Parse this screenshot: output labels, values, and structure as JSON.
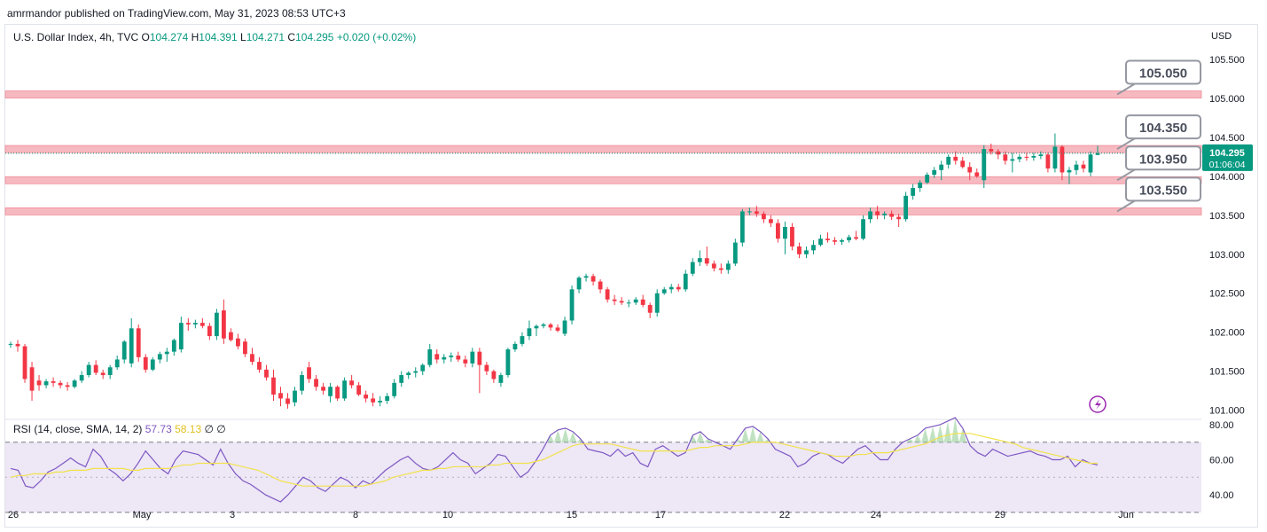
{
  "publisher": "amrmandor published on TradingView.com, May 31, 2023 08:53 UTC+3",
  "legend": {
    "symbol": "U.S. Dollar Index, 4h, TVC",
    "open_label": "O",
    "open": "104.274",
    "high_label": "H",
    "high": "104.391",
    "low_label": "L",
    "low": "104.271",
    "close_label": "C",
    "close": "104.295",
    "change": "+0.020 (+0.02%)"
  },
  "rsi_legend": {
    "label": "RSI (14, close, SMA, 14, 2)",
    "rsi": "57.73",
    "sma": "58.13",
    "extra1": "∅",
    "extra2": "∅"
  },
  "currency": "USD",
  "price_tag": {
    "price": "104.295",
    "countdown": "01:06:04"
  },
  "colors": {
    "up": "#089981",
    "down": "#f23645",
    "zone": "#f7b9c0",
    "zone_edge": "#f08c98",
    "rsi": "#7e57c2",
    "sma": "#f2e24b",
    "rsi_band": "#ede7f6"
  },
  "icons": [
    "lightning-icon"
  ],
  "chart_data": {
    "type": "candlestick",
    "timeframe": "4h",
    "x_ticks": [
      "26",
      "May",
      "3",
      "8",
      "10",
      "15",
      "17",
      "22",
      "24",
      "29",
      "Jun"
    ],
    "y_ticks": [
      "101.000",
      "101.500",
      "102.000",
      "102.500",
      "103.000",
      "103.500",
      "104.000",
      "104.500",
      "105.000",
      "105.500"
    ],
    "ylim": [
      100.95,
      105.75
    ],
    "levels": [
      {
        "label": "105.050",
        "value": 105.05
      },
      {
        "label": "104.350",
        "value": 104.35
      },
      {
        "label": "103.950",
        "value": 103.95
      },
      {
        "label": "103.550",
        "value": 103.55
      }
    ],
    "candles": [
      [
        101.85,
        101.88,
        101.8,
        101.85
      ],
      [
        101.85,
        101.9,
        101.75,
        101.82
      ],
      [
        101.82,
        101.85,
        101.35,
        101.4
      ],
      [
        101.55,
        101.62,
        101.12,
        101.25
      ],
      [
        101.38,
        101.45,
        101.25,
        101.32
      ],
      [
        101.32,
        101.4,
        101.28,
        101.37
      ],
      [
        101.37,
        101.42,
        101.3,
        101.35
      ],
      [
        101.35,
        101.38,
        101.28,
        101.32
      ],
      [
        101.32,
        101.36,
        101.25,
        101.3
      ],
      [
        101.3,
        101.4,
        101.28,
        101.38
      ],
      [
        101.38,
        101.5,
        101.35,
        101.45
      ],
      [
        101.45,
        101.62,
        101.42,
        101.58
      ],
      [
        101.58,
        101.64,
        101.45,
        101.48
      ],
      [
        101.48,
        101.52,
        101.4,
        101.45
      ],
      [
        101.45,
        101.58,
        101.4,
        101.55
      ],
      [
        101.55,
        101.7,
        101.52,
        101.65
      ],
      [
        101.65,
        101.9,
        101.6,
        101.88
      ],
      [
        101.6,
        102.18,
        101.55,
        102.05
      ],
      [
        102.05,
        102.1,
        101.62,
        101.68
      ],
      [
        101.68,
        101.72,
        101.48,
        101.52
      ],
      [
        101.52,
        101.68,
        101.5,
        101.65
      ],
      [
        101.65,
        101.75,
        101.6,
        101.72
      ],
      [
        101.72,
        101.8,
        101.62,
        101.75
      ],
      [
        101.75,
        101.92,
        101.7,
        101.9
      ],
      [
        101.78,
        102.2,
        101.74,
        102.12
      ],
      [
        102.12,
        102.18,
        102.02,
        102.1
      ],
      [
        102.1,
        102.16,
        102.05,
        102.12
      ],
      [
        102.12,
        102.18,
        102.05,
        102.08
      ],
      [
        102.08,
        102.12,
        101.9,
        101.95
      ],
      [
        101.95,
        102.3,
        101.9,
        102.25
      ],
      [
        102.28,
        102.42,
        101.85,
        101.92
      ],
      [
        102.0,
        102.05,
        101.88,
        101.9
      ],
      [
        101.92,
        101.98,
        101.78,
        101.82
      ],
      [
        101.88,
        101.92,
        101.68,
        101.72
      ],
      [
        101.72,
        101.8,
        101.58,
        101.62
      ],
      [
        101.62,
        101.68,
        101.48,
        101.52
      ],
      [
        101.52,
        101.58,
        101.38,
        101.42
      ],
      [
        101.42,
        101.52,
        101.12,
        101.2
      ],
      [
        101.22,
        101.3,
        101.05,
        101.15
      ],
      [
        101.15,
        101.22,
        101.02,
        101.08
      ],
      [
        101.1,
        101.3,
        101.05,
        101.25
      ],
      [
        101.25,
        101.5,
        101.2,
        101.45
      ],
      [
        101.55,
        101.62,
        101.35,
        101.4
      ],
      [
        101.4,
        101.45,
        101.25,
        101.3
      ],
      [
        101.3,
        101.35,
        101.2,
        101.25
      ],
      [
        101.18,
        101.35,
        101.1,
        101.3
      ],
      [
        101.3,
        101.32,
        101.12,
        101.15
      ],
      [
        101.15,
        101.42,
        101.12,
        101.38
      ],
      [
        101.38,
        101.45,
        101.28,
        101.32
      ],
      [
        101.32,
        101.36,
        101.18,
        101.2
      ],
      [
        101.2,
        101.25,
        101.1,
        101.15
      ],
      [
        101.15,
        101.22,
        101.05,
        101.1
      ],
      [
        101.1,
        101.18,
        101.05,
        101.12
      ],
      [
        101.12,
        101.22,
        101.08,
        101.18
      ],
      [
        101.18,
        101.4,
        101.15,
        101.35
      ],
      [
        101.35,
        101.5,
        101.3,
        101.45
      ],
      [
        101.45,
        101.5,
        101.4,
        101.48
      ],
      [
        101.48,
        101.55,
        101.42,
        101.5
      ],
      [
        101.5,
        101.6,
        101.45,
        101.58
      ],
      [
        101.58,
        101.85,
        101.55,
        101.78
      ],
      [
        101.72,
        101.78,
        101.6,
        101.65
      ],
      [
        101.65,
        101.72,
        101.6,
        101.68
      ],
      [
        101.68,
        101.74,
        101.62,
        101.7
      ],
      [
        101.7,
        101.75,
        101.62,
        101.65
      ],
      [
        101.65,
        101.7,
        101.55,
        101.6
      ],
      [
        101.6,
        101.8,
        101.55,
        101.75
      ],
      [
        101.75,
        101.8,
        101.22,
        101.58
      ],
      [
        101.58,
        101.62,
        101.45,
        101.5
      ],
      [
        101.5,
        101.52,
        101.35,
        101.4
      ],
      [
        101.35,
        101.48,
        101.3,
        101.45
      ],
      [
        101.45,
        101.8,
        101.42,
        101.78
      ],
      [
        101.78,
        101.88,
        101.75,
        101.85
      ],
      [
        101.85,
        102.0,
        101.82,
        101.95
      ],
      [
        101.95,
        102.15,
        101.9,
        102.05
      ],
      [
        102.05,
        102.1,
        101.95,
        102.08
      ],
      [
        102.08,
        102.12,
        102.05,
        102.1
      ],
      [
        102.1,
        102.12,
        102.02,
        102.06
      ],
      [
        102.06,
        102.1,
        102.0,
        102.02
      ],
      [
        101.98,
        102.2,
        101.95,
        102.15
      ],
      [
        102.15,
        102.6,
        102.1,
        102.55
      ],
      [
        102.55,
        102.72,
        102.5,
        102.7
      ],
      [
        102.7,
        102.75,
        102.65,
        102.72
      ],
      [
        102.72,
        102.75,
        102.6,
        102.65
      ],
      [
        102.65,
        102.68,
        102.5,
        102.55
      ],
      [
        102.55,
        102.58,
        102.38,
        102.42
      ],
      [
        102.42,
        102.48,
        102.35,
        102.4
      ],
      [
        102.4,
        102.45,
        102.35,
        102.38
      ],
      [
        102.38,
        102.42,
        102.32,
        102.38
      ],
      [
        102.38,
        102.45,
        102.35,
        102.42
      ],
      [
        102.42,
        102.48,
        102.32,
        102.35
      ],
      [
        102.35,
        102.38,
        102.18,
        102.25
      ],
      [
        102.25,
        102.55,
        102.2,
        102.5
      ],
      [
        102.5,
        102.58,
        102.48,
        102.55
      ],
      [
        102.55,
        102.62,
        102.5,
        102.58
      ],
      [
        102.58,
        102.62,
        102.52,
        102.55
      ],
      [
        102.55,
        102.8,
        102.52,
        102.75
      ],
      [
        102.75,
        102.95,
        102.72,
        102.9
      ],
      [
        102.9,
        103.05,
        102.85,
        102.95
      ],
      [
        102.95,
        103.1,
        102.85,
        102.88
      ],
      [
        102.88,
        102.92,
        102.78,
        102.82
      ],
      [
        102.82,
        102.88,
        102.75,
        102.8
      ],
      [
        102.8,
        102.92,
        102.75,
        102.88
      ],
      [
        102.88,
        103.2,
        102.85,
        103.15
      ],
      [
        103.15,
        103.58,
        103.1,
        103.55
      ],
      [
        103.55,
        103.6,
        103.5,
        103.55
      ],
      [
        103.55,
        103.62,
        103.48,
        103.52
      ],
      [
        103.52,
        103.55,
        103.4,
        103.45
      ],
      [
        103.45,
        103.5,
        103.35,
        103.4
      ],
      [
        103.4,
        103.45,
        103.15,
        103.2
      ],
      [
        103.2,
        103.42,
        103.0,
        103.35
      ],
      [
        103.35,
        103.4,
        103.05,
        103.1
      ],
      [
        103.1,
        103.15,
        102.95,
        103.0
      ],
      [
        103.0,
        103.1,
        102.95,
        103.05
      ],
      [
        103.05,
        103.18,
        103.0,
        103.12
      ],
      [
        103.12,
        103.25,
        103.1,
        103.2
      ],
      [
        103.2,
        103.28,
        103.15,
        103.18
      ],
      [
        103.18,
        103.22,
        103.12,
        103.16
      ],
      [
        103.16,
        103.2,
        103.12,
        103.18
      ],
      [
        103.18,
        103.25,
        103.15,
        103.22
      ],
      [
        103.22,
        103.3,
        103.18,
        103.2
      ],
      [
        103.2,
        103.5,
        103.18,
        103.45
      ],
      [
        103.45,
        103.6,
        103.4,
        103.55
      ],
      [
        103.55,
        103.62,
        103.45,
        103.5
      ],
      [
        103.5,
        103.55,
        103.45,
        103.52
      ],
      [
        103.52,
        103.56,
        103.44,
        103.48
      ],
      [
        103.48,
        103.52,
        103.35,
        103.45
      ],
      [
        103.45,
        103.8,
        103.42,
        103.75
      ],
      [
        103.75,
        103.9,
        103.7,
        103.85
      ],
      [
        103.85,
        103.95,
        103.8,
        103.92
      ],
      [
        103.92,
        104.05,
        103.9,
        104.02
      ],
      [
        104.02,
        104.12,
        103.98,
        104.08
      ],
      [
        104.08,
        104.2,
        103.95,
        104.15
      ],
      [
        104.15,
        104.28,
        104.1,
        104.25
      ],
      [
        104.25,
        104.32,
        104.15,
        104.2
      ],
      [
        104.2,
        104.25,
        104.1,
        104.12
      ],
      [
        104.12,
        104.18,
        103.95,
        104.05
      ],
      [
        104.05,
        104.1,
        103.98,
        104.0
      ],
      [
        103.95,
        104.4,
        103.85,
        104.35
      ],
      [
        104.35,
        104.42,
        104.28,
        104.32
      ],
      [
        104.32,
        104.35,
        104.22,
        104.28
      ],
      [
        104.28,
        104.32,
        104.15,
        104.2
      ],
      [
        104.2,
        104.3,
        104.05,
        104.22
      ],
      [
        104.22,
        104.28,
        104.18,
        104.25
      ],
      [
        104.25,
        104.3,
        104.2,
        104.24
      ],
      [
        104.24,
        104.3,
        104.2,
        104.26
      ],
      [
        104.26,
        104.32,
        104.22,
        104.28
      ],
      [
        104.28,
        104.3,
        104.05,
        104.1
      ],
      [
        104.1,
        104.55,
        104.05,
        104.38
      ],
      [
        104.38,
        104.4,
        103.95,
        104.05
      ],
      [
        104.05,
        104.12,
        103.9,
        104.08
      ],
      [
        104.08,
        104.2,
        104.02,
        104.15
      ],
      [
        104.15,
        104.2,
        104.05,
        104.1
      ],
      [
        104.05,
        104.32,
        104.0,
        104.28
      ],
      [
        104.274,
        104.391,
        104.271,
        104.295
      ]
    ],
    "rsi": {
      "label": "RSI (14, close, SMA, 14, 2)",
      "y_ticks": [
        "40.00",
        "60.00",
        "80.00"
      ],
      "ylim": [
        36,
        83
      ],
      "overbought": 70,
      "oversold": 30,
      "rsi_values": [
        55,
        54,
        45,
        44,
        48,
        53,
        55,
        58,
        61,
        58,
        56,
        66,
        62,
        55,
        52,
        48,
        52,
        58,
        65,
        60,
        55,
        52,
        60,
        65,
        64,
        63,
        60,
        57,
        66,
        58,
        52,
        48,
        46,
        43,
        40,
        38,
        36,
        40,
        45,
        50,
        48,
        44,
        42,
        46,
        50,
        48,
        44,
        48,
        46,
        50,
        54,
        57,
        60,
        62,
        58,
        55,
        54,
        56,
        60,
        64,
        60,
        58,
        52,
        55,
        58,
        63,
        62,
        56,
        50,
        53,
        59,
        66,
        74,
        77,
        78,
        76,
        72,
        66,
        65,
        64,
        62,
        66,
        62,
        64,
        58,
        56,
        66,
        68,
        65,
        62,
        64,
        74,
        76,
        72,
        70,
        68,
        66,
        72,
        78,
        79,
        76,
        72,
        66,
        64,
        62,
        56,
        58,
        62,
        64,
        63,
        60,
        58,
        62,
        66,
        68,
        64,
        60,
        60,
        66,
        70,
        72,
        74,
        78,
        79,
        80,
        82,
        84,
        78,
        68,
        64,
        62,
        66,
        64,
        62,
        63,
        64,
        65,
        63,
        62,
        60,
        60,
        62,
        56,
        60,
        58,
        57
      ],
      "sma_values": [
        50,
        51,
        51,
        52,
        52,
        52,
        53,
        53,
        54,
        54,
        54,
        55,
        55,
        55,
        55,
        55,
        54,
        54,
        55,
        55,
        55,
        55,
        56,
        57,
        57,
        58,
        58,
        58,
        58,
        58,
        57,
        56,
        55,
        54,
        52,
        50,
        48,
        47,
        46,
        45,
        45,
        45,
        45,
        45,
        45,
        45,
        45,
        45,
        46,
        47,
        48,
        50,
        51,
        52,
        53,
        54,
        54,
        55,
        55,
        56,
        56,
        56,
        56,
        56,
        57,
        57,
        58,
        58,
        58,
        58,
        59,
        60,
        62,
        64,
        66,
        68,
        69,
        69,
        69,
        69,
        69,
        68,
        67,
        66,
        65,
        65,
        65,
        65,
        65,
        65,
        65,
        66,
        67,
        67,
        68,
        68,
        68,
        68,
        69,
        70,
        70,
        70,
        70,
        69,
        68,
        67,
        66,
        65,
        64,
        63,
        62,
        62,
        62,
        63,
        63,
        64,
        64,
        64,
        65,
        66,
        67,
        68,
        69,
        71,
        73,
        74,
        75,
        75,
        75,
        74,
        73,
        72,
        71,
        70,
        69,
        67,
        66,
        65,
        64,
        63,
        62,
        61,
        60,
        59,
        58,
        58
      ]
    }
  }
}
